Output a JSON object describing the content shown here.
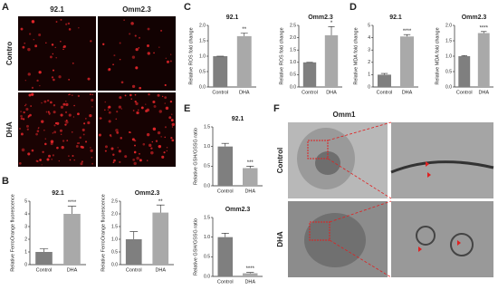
{
  "panels": {
    "letters": [
      "A",
      "B",
      "C",
      "D",
      "E",
      "F"
    ],
    "a_columns": [
      "92.1",
      "Omm2.3"
    ],
    "a_rows": [
      "Contro",
      "DHA"
    ],
    "f_title": "Omm1",
    "f_rows": [
      "Control",
      "DHA"
    ]
  },
  "chart_data": [
    {
      "type": "bar",
      "title": "92.1",
      "y_label": "Relative FerroOrange fluorescence",
      "categories": [
        "Control",
        "DHA"
      ],
      "values": [
        1.0,
        4.0
      ],
      "errors": [
        0.25,
        0.6
      ],
      "colors": [
        "#7f7f7f",
        "#a9a9a9"
      ],
      "annotation": "****",
      "ylim": [
        0,
        5
      ],
      "yticks": [
        0,
        1,
        2,
        3,
        4,
        5
      ]
    },
    {
      "type": "bar",
      "title": "Omm2.3",
      "y_label": "Relative FerroOrange fluorescence",
      "categories": [
        "Control",
        "DHA"
      ],
      "values": [
        1.0,
        2.05
      ],
      "errors": [
        0.3,
        0.3
      ],
      "colors": [
        "#7f7f7f",
        "#a9a9a9"
      ],
      "annotation": "**",
      "ylim": [
        0,
        2.5
      ],
      "yticks": [
        {
          "value": 0,
          "label": "0.0"
        },
        0.5,
        {
          "value": 1,
          "label": "1.0"
        },
        1.5,
        {
          "value": 2,
          "label": "2.0"
        },
        2.5
      ]
    },
    {
      "type": "bar",
      "title": "92.1",
      "y_label": "Relative ROS fold change",
      "categories": [
        "Control",
        "DHA"
      ],
      "values": [
        1.0,
        1.65
      ],
      "errors": [
        0,
        0.1
      ],
      "colors": [
        "#7f7f7f",
        "#a9a9a9"
      ],
      "annotation": "**",
      "ylim": [
        0,
        2
      ],
      "yticks": [
        {
          "value": 0,
          "label": "0.0"
        },
        0.5,
        {
          "value": 1,
          "label": "1.0"
        },
        1.5,
        {
          "value": 2,
          "label": "2.0"
        }
      ]
    },
    {
      "type": "bar",
      "title": "Omm2.3",
      "y_label": "Relative ROS fold change",
      "categories": [
        "Control",
        "DHA"
      ],
      "values": [
        1.0,
        2.1
      ],
      "errors": [
        0,
        0.35
      ],
      "colors": [
        "#7f7f7f",
        "#a9a9a9"
      ],
      "annotation": "*",
      "ylim": [
        0,
        2.5
      ],
      "yticks": [
        {
          "value": 0,
          "label": "0.0"
        },
        0.5,
        {
          "value": 1,
          "label": "1.0"
        },
        1.5,
        {
          "value": 2,
          "label": "2.0"
        },
        2.5
      ]
    },
    {
      "type": "bar",
      "title": "92.1",
      "y_label": "Relative MDA fold change",
      "categories": [
        "Control",
        "DHA"
      ],
      "values": [
        1.0,
        4.1
      ],
      "errors": [
        0.1,
        0.15
      ],
      "colors": [
        "#7f7f7f",
        "#a9a9a9"
      ],
      "annotation": "****",
      "ylim": [
        0,
        5
      ],
      "yticks": [
        0,
        1,
        2,
        3,
        4,
        5
      ]
    },
    {
      "type": "bar",
      "title": "Omm2.3",
      "y_label": "Relative MDA fold change",
      "categories": [
        "Control",
        "DHA"
      ],
      "values": [
        1.0,
        1.75
      ],
      "errors": [
        0.02,
        0.05
      ],
      "colors": [
        "#7f7f7f",
        "#a9a9a9"
      ],
      "annotation": "****",
      "ylim": [
        0,
        2
      ],
      "yticks": [
        {
          "value": 0,
          "label": "0.0"
        },
        0.5,
        {
          "value": 1,
          "label": "1.0"
        },
        1.5,
        {
          "value": 2,
          "label": "2.0"
        }
      ]
    },
    {
      "type": "bar",
      "title": "92.1",
      "y_label": "Relative GSH/GSSG ratio",
      "categories": [
        "Control",
        "DHA"
      ],
      "values": [
        1.0,
        0.45
      ],
      "errors": [
        0.08,
        0.05
      ],
      "colors": [
        "#7f7f7f",
        "#a9a9a9"
      ],
      "annotation": "***",
      "ylim": [
        0,
        1.5
      ],
      "yticks": [
        {
          "value": 0,
          "label": "0.0"
        },
        0.5,
        {
          "value": 1,
          "label": "1.0"
        },
        1.5
      ]
    },
    {
      "type": "bar",
      "title": "Omm2.3",
      "y_label": "Relative GSH/GSSG ratio",
      "categories": [
        "Control",
        "DHA"
      ],
      "values": [
        1.0,
        0.08
      ],
      "errors": [
        0.1,
        0.02
      ],
      "colors": [
        "#7f7f7f",
        "#a9a9a9"
      ],
      "annotation": "****",
      "ylim": [
        0,
        1.5
      ],
      "yticks": [
        {
          "value": 0,
          "label": "0.0"
        },
        0.5,
        {
          "value": 1,
          "label": "1.0"
        },
        1.5
      ]
    }
  ]
}
